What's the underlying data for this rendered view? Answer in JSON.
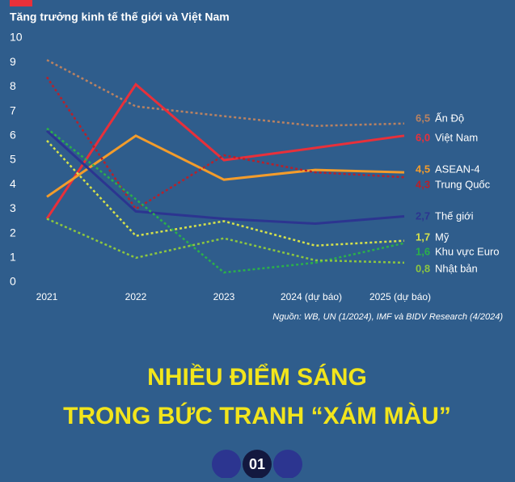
{
  "chart_data": {
    "type": "line",
    "title": "Tăng trưởng kinh tế thế giới và Việt Nam",
    "categories": [
      "2021",
      "2022",
      "2023",
      "2024 (dự báo)",
      "2025 (dự báo)"
    ],
    "ylim": [
      0,
      10
    ],
    "yticks": [
      0,
      1,
      2,
      3,
      4,
      5,
      6,
      7,
      8,
      9,
      10
    ],
    "series": [
      {
        "name": "Ấn Độ",
        "color": "#b98262",
        "dashed": true,
        "values": [
          9.1,
          7.2,
          6.8,
          6.4,
          6.5
        ],
        "value_labels": [
          null,
          null,
          null,
          null,
          "6,5"
        ]
      },
      {
        "name": "Việt Nam",
        "color": "#e8303a",
        "dashed": false,
        "values": [
          2.6,
          8.1,
          5.0,
          5.5,
          6.0
        ],
        "value_labels": [
          null,
          null,
          null,
          null,
          "6,0"
        ]
      },
      {
        "name": "ASEAN-4",
        "color": "#f39c2b",
        "dashed": false,
        "values": [
          3.5,
          6.0,
          4.2,
          4.6,
          4.5
        ],
        "value_labels": [
          null,
          null,
          null,
          null,
          "4,5"
        ]
      },
      {
        "name": "Trung Quốc",
        "color": "#b8202a",
        "dashed": true,
        "values": [
          8.4,
          3.0,
          5.2,
          4.5,
          4.3
        ],
        "value_labels": [
          null,
          null,
          null,
          null,
          "4,3"
        ]
      },
      {
        "name": "Thế giới",
        "color": "#2c3590",
        "dashed": false,
        "values": [
          6.2,
          2.9,
          2.6,
          2.4,
          2.7
        ],
        "value_labels": [
          null,
          null,
          null,
          null,
          "2,7"
        ]
      },
      {
        "name": "Mỹ",
        "color": "#d6e24a",
        "dashed": true,
        "values": [
          5.8,
          1.9,
          2.5,
          1.5,
          1.7
        ],
        "value_labels": [
          null,
          null,
          null,
          null,
          "1,7"
        ]
      },
      {
        "name": "Khu vực Euro",
        "color": "#2bb04a",
        "dashed": true,
        "values": [
          6.3,
          3.4,
          0.4,
          0.8,
          1.6
        ],
        "value_labels": [
          null,
          null,
          null,
          null,
          "1,6"
        ]
      },
      {
        "name": "Nhật bản",
        "color": "#8dc63f",
        "dashed": true,
        "values": [
          2.6,
          1.0,
          1.8,
          0.9,
          0.8
        ],
        "value_labels": [
          null,
          null,
          null,
          null,
          "0,8"
        ]
      }
    ],
    "source": "Nguồn: WB, UN (1/2024), IMF và BIDV Research (4/2024)"
  },
  "headline": [
    "NHIỀU ĐIỂM SÁNG",
    "TRONG BỨC TRANH “XÁM MÀU”"
  ],
  "badge": "01"
}
